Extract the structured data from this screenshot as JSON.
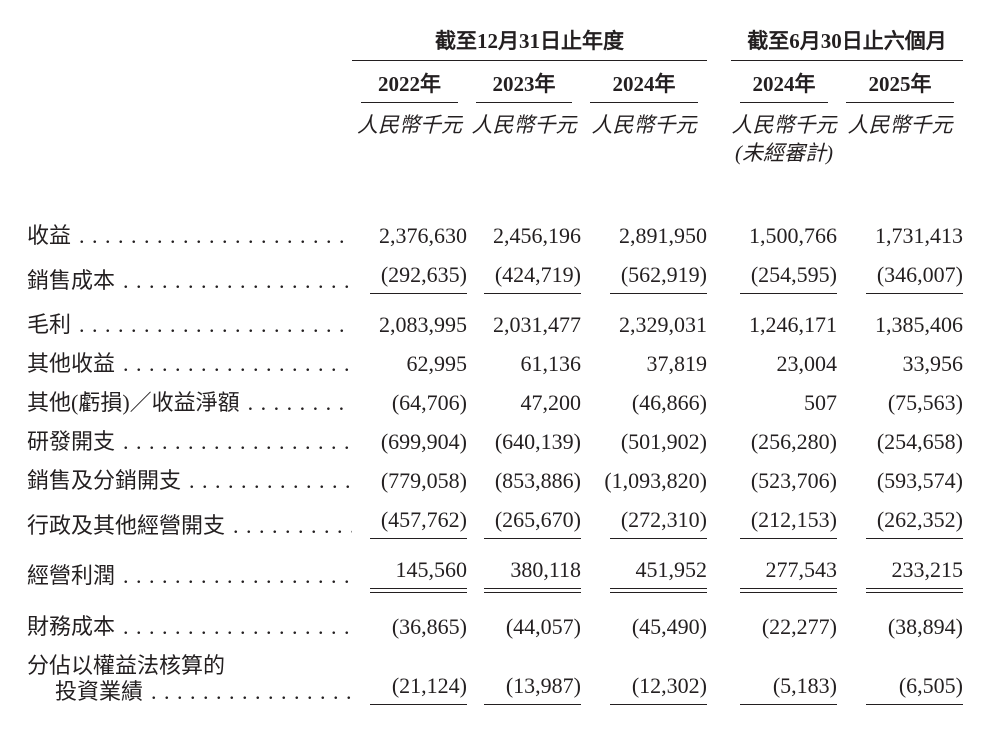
{
  "page": {
    "background_color": "#ffffff",
    "text_color": "#231f20",
    "currency_unit": "人民幣千元"
  },
  "table": {
    "header": {
      "groups": [
        {
          "title": "截至12月31日止年度"
        },
        {
          "title": "截至6月30日止六個月"
        }
      ],
      "columns": [
        {
          "year": "2022年",
          "unit": "人民幣千元",
          "note": ""
        },
        {
          "year": "2023年",
          "unit": "人民幣千元",
          "note": ""
        },
        {
          "year": "2024年",
          "unit": "人民幣千元",
          "note": ""
        },
        {
          "year": "2024年",
          "unit": "人民幣千元",
          "note": "(未經審計)"
        },
        {
          "year": "2025年",
          "unit": "人民幣千元",
          "note": ""
        }
      ]
    },
    "rows": [
      {
        "label": "收益",
        "values": [
          "2,376,630",
          "2,456,196",
          "2,891,950",
          "1,500,766",
          "1,731,413"
        ]
      },
      {
        "label": "銷售成本",
        "values": [
          "(292,635)",
          "(424,719)",
          "(562,919)",
          "(254,595)",
          "(346,007)"
        ],
        "rule": "single"
      },
      {
        "label": "毛利",
        "values": [
          "2,083,995",
          "2,031,477",
          "2,329,031",
          "1,246,171",
          "1,385,406"
        ]
      },
      {
        "label": "其他收益",
        "values": [
          "62,995",
          "61,136",
          "37,819",
          "23,004",
          "33,956"
        ]
      },
      {
        "label": "其他(虧損)／收益淨額",
        "values": [
          "(64,706)",
          "47,200",
          "(46,866)",
          "507",
          "(75,563)"
        ]
      },
      {
        "label": "研發開支",
        "values": [
          "(699,904)",
          "(640,139)",
          "(501,902)",
          "(256,280)",
          "(254,658)"
        ]
      },
      {
        "label": "銷售及分銷開支",
        "values": [
          "(779,058)",
          "(853,886)",
          "(1,093,820)",
          "(523,706)",
          "(593,574)"
        ]
      },
      {
        "label": "行政及其他經營開支",
        "values": [
          "(457,762)",
          "(265,670)",
          "(272,310)",
          "(212,153)",
          "(262,352)"
        ],
        "rule": "single"
      },
      {
        "label": "經營利潤",
        "values": [
          "145,560",
          "380,118",
          "451,952",
          "277,543",
          "233,215"
        ],
        "rule": "double"
      },
      {
        "label": "財務成本",
        "values": [
          "(36,865)",
          "(44,057)",
          "(45,490)",
          "(22,277)",
          "(38,894)"
        ]
      },
      {
        "label": "分佔以權益法核算的",
        "label_line2": "投資業績",
        "values": [
          "(21,124)",
          "(13,987)",
          "(12,302)",
          "(5,183)",
          "(6,505)"
        ],
        "rule": "single"
      }
    ]
  }
}
